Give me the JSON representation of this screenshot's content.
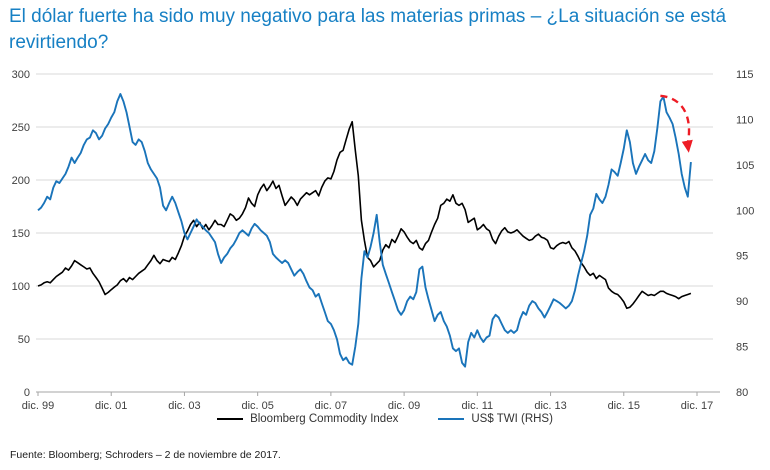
{
  "header": {
    "title": "El dólar fuerte ha sido muy negativo para las materias primas – ¿La situación se está revirtiendo?"
  },
  "chart_data": {
    "type": "line",
    "x_start": "dic. 1999",
    "x_frequency": "monthly",
    "x_tick_labels": [
      "dic. 99",
      "dic. 01",
      "dic. 03",
      "dic. 05",
      "dic. 07",
      "dic. 09",
      "dic. 11",
      "dic. 13",
      "dic. 15",
      "dic. 17"
    ],
    "axes": {
      "left": {
        "min": 0,
        "max": 300,
        "ticks": [
          0,
          50,
          100,
          150,
          200,
          250,
          300
        ]
      },
      "right": {
        "min": 80,
        "max": 115,
        "ticks": [
          80,
          85,
          90,
          95,
          100,
          105,
          110,
          115
        ]
      }
    },
    "grid": "horizontal",
    "legend_position": "bottom-center",
    "series": [
      {
        "name": "Bloomberg Commodity Index",
        "axis": "left",
        "color": "#000000",
        "values": [
          100,
          101,
          103,
          104,
          103,
          106,
          109,
          111,
          113,
          117,
          115,
          119,
          124,
          122,
          120,
          118,
          116,
          117,
          112,
          108,
          104,
          98,
          92,
          94,
          96.5,
          99,
          101,
          105,
          107,
          104,
          108,
          106,
          109,
          112,
          114,
          116,
          120,
          124,
          129,
          124,
          121,
          125,
          124,
          123,
          127,
          125,
          131,
          138,
          147,
          152,
          158,
          162,
          156,
          160,
          154,
          158,
          153,
          157,
          162,
          158,
          158,
          156,
          162,
          168,
          166,
          162,
          164,
          168,
          174,
          183,
          178,
          175,
          186,
          192,
          196,
          190,
          194,
          199,
          192,
          195,
          185,
          176,
          180,
          184,
          181,
          176,
          182,
          185,
          188,
          186,
          188,
          190,
          185,
          193,
          199,
          202,
          201,
          208,
          219,
          226,
          228,
          238,
          248,
          255,
          228,
          204,
          162,
          143,
          127,
          124,
          118,
          121,
          124,
          134,
          139,
          136,
          144,
          141,
          147,
          154,
          151,
          146,
          142,
          140,
          143,
          136,
          134,
          140,
          143,
          151,
          158,
          164,
          176,
          178,
          182,
          180,
          186,
          178,
          176,
          178,
          172,
          160,
          162,
          164,
          153,
          155,
          158,
          154,
          152,
          144,
          140,
          147,
          152,
          155,
          151,
          150,
          151,
          153,
          150,
          147,
          145,
          143,
          144,
          147,
          149,
          146,
          145,
          143,
          136,
          135,
          138,
          140,
          141,
          140,
          142,
          136,
          133,
          128,
          122,
          118,
          113,
          110,
          112,
          107,
          110,
          108,
          106,
          98,
          95,
          93,
          92,
          89,
          85,
          79,
          80,
          83,
          87,
          91,
          95,
          93,
          91,
          92,
          91,
          93,
          95,
          95,
          93,
          92,
          91,
          90,
          88,
          90,
          91,
          92,
          93
        ]
      },
      {
        "name": "US$ TWI (RHS)",
        "axis": "right",
        "color": "#1a74ba",
        "values": [
          100.0,
          100.3,
          100.8,
          101.5,
          101.2,
          102.5,
          103.2,
          103.0,
          103.5,
          104.0,
          104.8,
          105.8,
          105.2,
          105.8,
          106.3,
          107.2,
          107.8,
          108.0,
          108.8,
          108.5,
          107.8,
          108.2,
          109.0,
          109.5,
          110.2,
          110.8,
          112.0,
          112.8,
          112.0,
          110.8,
          109.2,
          107.5,
          107.2,
          107.8,
          107.5,
          106.5,
          105.2,
          104.5,
          104.0,
          103.5,
          102.5,
          100.5,
          100.0,
          100.8,
          101.5,
          100.8,
          99.8,
          98.8,
          97.5,
          96.8,
          97.5,
          98.2,
          99.0,
          98.5,
          98.2,
          97.8,
          97.5,
          97.0,
          96.5,
          95.2,
          94.2,
          94.8,
          95.2,
          95.8,
          96.2,
          96.8,
          97.5,
          97.8,
          97.5,
          97.2,
          98.0,
          98.5,
          98.2,
          97.8,
          97.5,
          97.2,
          96.5,
          95.2,
          94.8,
          94.5,
          94.2,
          94.5,
          94.2,
          93.5,
          92.8,
          93.2,
          93.5,
          93.0,
          92.2,
          91.5,
          91.2,
          90.5,
          90.8,
          89.8,
          88.8,
          87.8,
          87.5,
          86.8,
          85.8,
          84.2,
          83.5,
          83.8,
          83.2,
          83.0,
          85.0,
          87.5,
          92.5,
          95.5,
          94.8,
          96.0,
          97.5,
          99.5,
          96.5,
          94.0,
          93.0,
          92.0,
          91.0,
          90.0,
          89.0,
          88.5,
          89.0,
          90.0,
          90.5,
          90.2,
          91.0,
          93.5,
          93.8,
          91.5,
          90.2,
          89.0,
          87.8,
          88.5,
          88.8,
          87.8,
          87.2,
          86.2,
          84.8,
          84.5,
          84.8,
          83.2,
          82.8,
          85.5,
          86.5,
          86.0,
          86.8,
          86.0,
          85.5,
          86.0,
          86.2,
          88.0,
          88.5,
          88.2,
          87.5,
          86.8,
          86.5,
          86.8,
          86.5,
          86.8,
          88.0,
          88.8,
          88.5,
          89.5,
          90.0,
          89.8,
          89.2,
          88.8,
          88.2,
          88.8,
          89.5,
          90.2,
          90.0,
          89.8,
          89.5,
          89.2,
          89.5,
          90.0,
          91.2,
          92.8,
          94.2,
          95.5,
          97.2,
          99.5,
          100.2,
          101.8,
          101.2,
          100.8,
          101.5,
          102.8,
          104.5,
          104.2,
          103.8,
          105.2,
          106.8,
          108.8,
          107.5,
          105.2,
          104.0,
          104.8,
          105.5,
          106.2,
          105.5,
          105.2,
          106.5,
          109.0,
          112.0,
          112.5,
          110.8,
          110.2,
          109.5,
          108.0,
          106.2,
          104.0,
          102.5,
          101.5,
          105.3
        ]
      }
    ],
    "annotation": {
      "type": "arrow",
      "style": "dashed",
      "color": "#ee1c25",
      "meaning": "recent decline of US$ TWI",
      "from": {
        "month_index": 204,
        "value": 112.6
      },
      "to": {
        "month_index": 213,
        "value": 107.0
      }
    }
  },
  "footer": {
    "source": "Fuente: Bloomberg; Schroders – 2 de noviembre de 2017."
  },
  "colors": {
    "title_blue": "#1780c4",
    "line_blue": "#1a74ba",
    "line_black": "#000000",
    "grid": "#d9d9d9",
    "axis": "#a6a6a6",
    "tick_text": "#404040",
    "annotation_red": "#ee1c25"
  }
}
